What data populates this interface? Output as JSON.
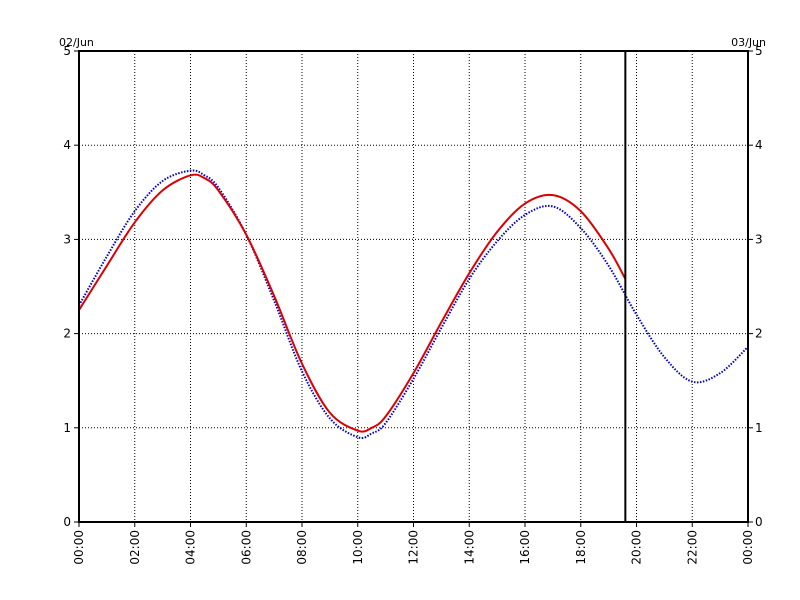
{
  "chart_data": {
    "type": "line",
    "date_left": "02/Jun",
    "date_right": "03/Jun",
    "x_tick_labels": [
      "00:00",
      "02:00",
      "04:00",
      "06:00",
      "08:00",
      "10:00",
      "12:00",
      "14:00",
      "16:00",
      "18:00",
      "20:00",
      "22:00",
      "00:00"
    ],
    "y_tick_labels": [
      "0",
      "1",
      "2",
      "3",
      "4",
      "5"
    ],
    "xlim_hours": [
      0,
      24
    ],
    "ylim": [
      0,
      5
    ],
    "grid": true,
    "current_time_hours": 19.6,
    "series": [
      {
        "color": "#0000cc",
        "style": "dotted",
        "x_hours": [
          0,
          1,
          2,
          3,
          4,
          4.5,
          5,
          6,
          7,
          8,
          9,
          10,
          10.5,
          11,
          12,
          13,
          14,
          15,
          16,
          17,
          18,
          19,
          20,
          21,
          22,
          23,
          24
        ],
        "values": [
          2.3,
          2.82,
          3.3,
          3.62,
          3.73,
          3.68,
          3.55,
          3.05,
          2.35,
          1.6,
          1.1,
          0.9,
          0.94,
          1.05,
          1.52,
          2.06,
          2.58,
          2.98,
          3.26,
          3.35,
          3.12,
          2.72,
          2.2,
          1.75,
          1.49,
          1.58,
          1.86
        ]
      },
      {
        "color": "#dd0000",
        "style": "solid",
        "x_hours": [
          0,
          1,
          2,
          3,
          4,
          4.5,
          5,
          6,
          7,
          8,
          9,
          10,
          10.5,
          11,
          12,
          13,
          14,
          15,
          16,
          17,
          18,
          19,
          19.6
        ],
        "values": [
          2.25,
          2.72,
          3.18,
          3.52,
          3.68,
          3.65,
          3.52,
          3.05,
          2.4,
          1.68,
          1.16,
          0.97,
          1.0,
          1.12,
          1.58,
          2.12,
          2.64,
          3.08,
          3.38,
          3.47,
          3.3,
          2.9,
          2.58
        ]
      }
    ]
  }
}
